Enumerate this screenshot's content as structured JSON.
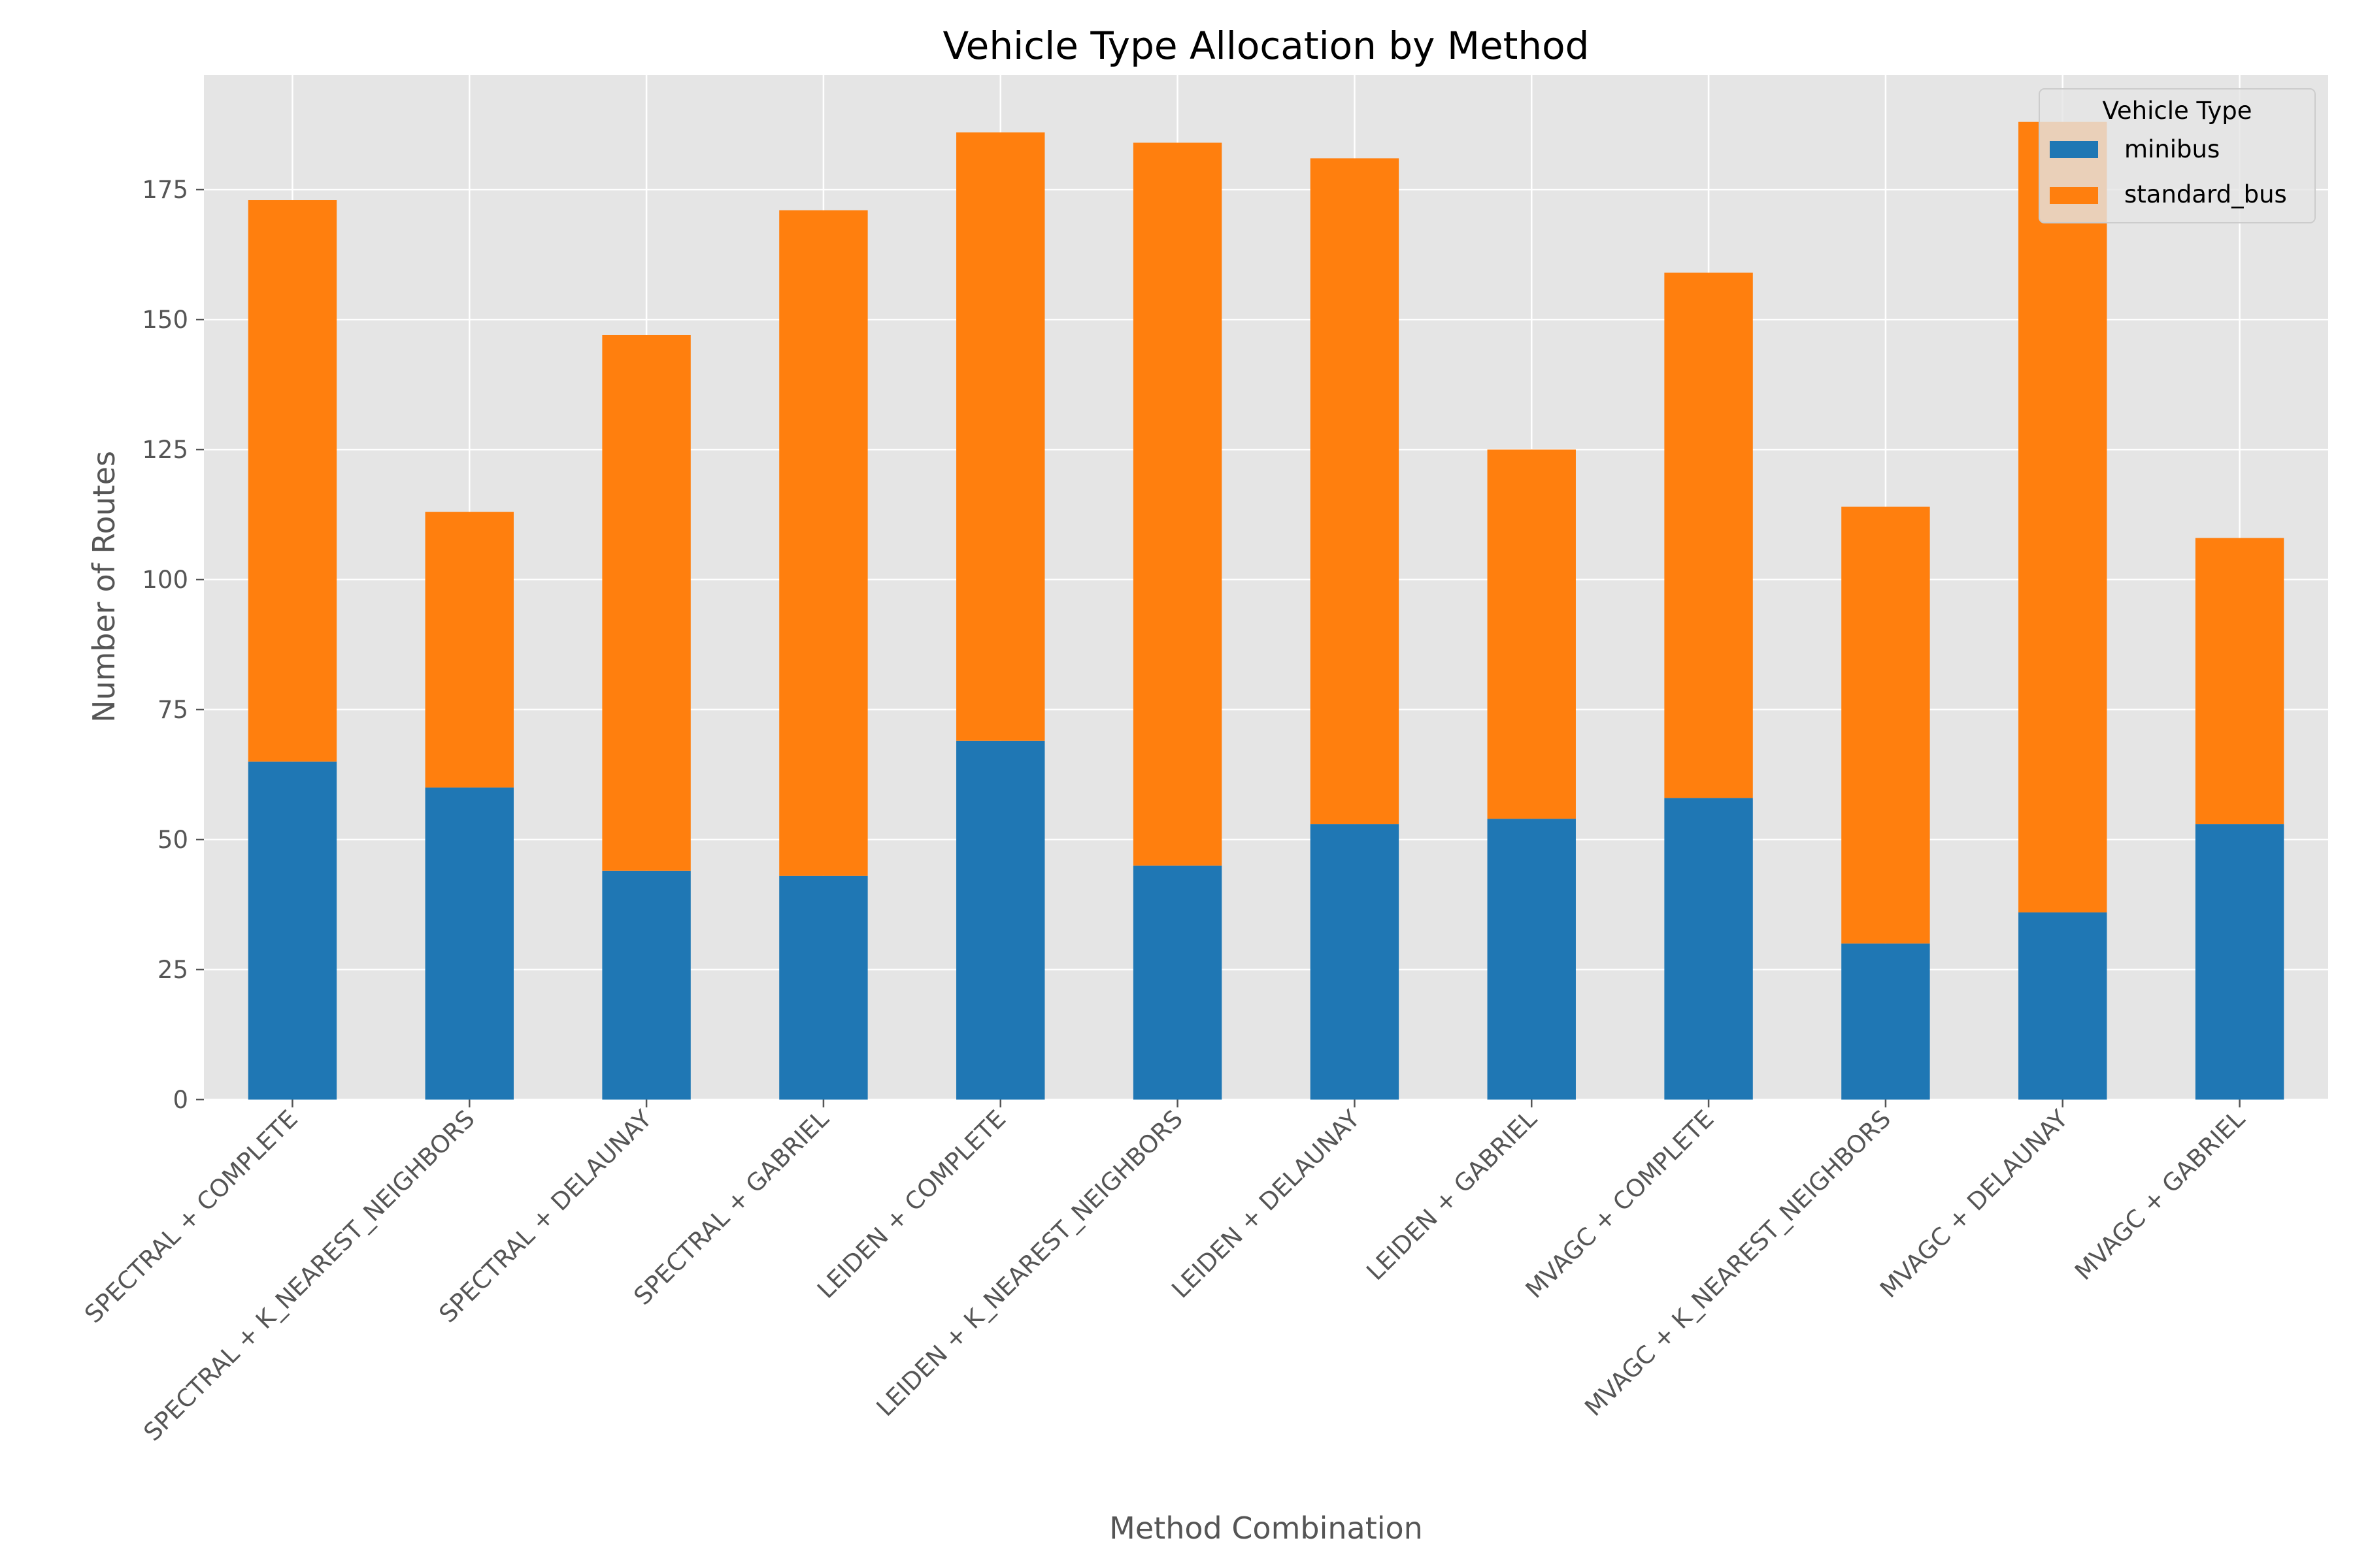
{
  "chart_data": {
    "type": "bar",
    "stacked": true,
    "title": "Vehicle Type Allocation by Method",
    "xlabel": "Method Combination",
    "ylabel": "Number of Routes",
    "ylim": [
      0,
      197
    ],
    "yticks": [
      0,
      25,
      50,
      75,
      100,
      125,
      150,
      175
    ],
    "grid": true,
    "legend_placement": "top-right",
    "legend_title": "Vehicle Type",
    "categories": [
      "SPECTRAL + COMPLETE",
      "SPECTRAL + K_NEAREST_NEIGHBORS",
      "SPECTRAL + DELAUNAY",
      "SPECTRAL + GABRIEL",
      "LEIDEN + COMPLETE",
      "LEIDEN + K_NEAREST_NEIGHBORS",
      "LEIDEN + DELAUNAY",
      "LEIDEN + GABRIEL",
      "MVAGC + COMPLETE",
      "MVAGC + K_NEAREST_NEIGHBORS",
      "MVAGC + DELAUNAY",
      "MVAGC + GABRIEL"
    ],
    "series": [
      {
        "name": "minibus",
        "color": "#1f77b4",
        "values": [
          65,
          60,
          44,
          43,
          69,
          45,
          53,
          54,
          58,
          30,
          36,
          53
        ]
      },
      {
        "name": "standard_bus",
        "color": "#ff7f0e",
        "values": [
          108,
          53,
          103,
          128,
          117,
          139,
          128,
          71,
          101,
          84,
          152,
          55
        ]
      }
    ],
    "background_color": "#e5e5e5",
    "grid_color": "#ffffff"
  }
}
